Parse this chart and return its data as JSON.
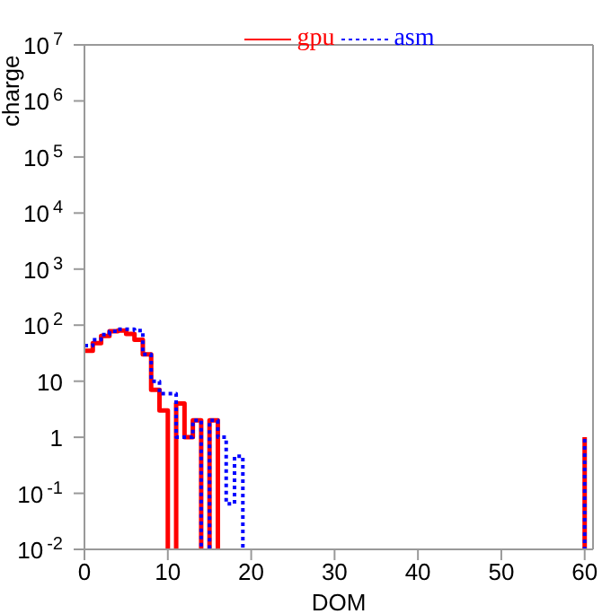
{
  "chart_data": {
    "type": "step",
    "xlabel": "DOM",
    "ylabel": "charge",
    "log": "y",
    "legend": "top",
    "grid": false,
    "x": [
      0,
      1,
      2,
      3,
      4,
      5,
      6,
      7,
      8,
      9,
      10,
      11,
      12,
      13,
      14,
      15,
      16,
      17,
      18,
      19,
      20,
      21,
      22,
      23,
      24,
      25,
      26,
      27,
      28,
      29,
      30,
      31,
      32,
      33,
      34,
      35,
      36,
      37,
      38,
      39,
      40,
      41,
      42,
      43,
      44,
      45,
      46,
      47,
      48,
      49,
      50,
      51,
      52,
      53,
      54,
      55,
      56,
      57,
      58,
      59,
      60
    ],
    "xlim": [
      0,
      61
    ],
    "xticks": [
      0,
      10,
      20,
      30,
      40,
      50,
      60
    ],
    "ylim": [
      0.01,
      10000000
    ],
    "yticks": [
      {
        "value": 0.01,
        "label": "10$^{-2}$"
      },
      {
        "value": 0.1,
        "label": "10$^{-1}$"
      },
      {
        "value": 1,
        "label": "1"
      },
      {
        "value": 10,
        "label": "10"
      },
      {
        "value": 100,
        "label": "10$^{2}$"
      },
      {
        "value": 1000,
        "label": "10$^{3}$"
      },
      {
        "value": 10000,
        "label": "10$^{4}$"
      },
      {
        "value": 100000,
        "label": "10$^{5}$"
      },
      {
        "value": 1000000,
        "label": "10$^{6}$"
      },
      {
        "value": 10000000,
        "label": "10$^{7}$"
      }
    ],
    "series": [
      {
        "name": "gpu",
        "color": "#ff0000",
        "line_style": "solid",
        "values": [
          35,
          48,
          64,
          78,
          80,
          70,
          55,
          30,
          7,
          3,
          null,
          4,
          1,
          2,
          null,
          2,
          null,
          null,
          null,
          null,
          null,
          null,
          null,
          null,
          null,
          null,
          null,
          null,
          null,
          null,
          null,
          null,
          null,
          null,
          null,
          null,
          null,
          null,
          null,
          null,
          null,
          null,
          null,
          null,
          null,
          null,
          null,
          null,
          null,
          null,
          null,
          null,
          null,
          null,
          null,
          null,
          null,
          null,
          null,
          null,
          1
        ]
      },
      {
        "name": "asm",
        "color": "#0000ff",
        "line_style": "dotted",
        "values": [
          43,
          55,
          68,
          78,
          85,
          85,
          80,
          30,
          10,
          6,
          6,
          1,
          1,
          2,
          null,
          2,
          1,
          0.065,
          0.46,
          null,
          null,
          null,
          null,
          null,
          null,
          null,
          null,
          null,
          null,
          null,
          null,
          null,
          null,
          null,
          null,
          null,
          null,
          null,
          null,
          null,
          null,
          null,
          null,
          null,
          null,
          null,
          null,
          null,
          null,
          null,
          null,
          null,
          null,
          null,
          null,
          null,
          null,
          null,
          null,
          null,
          1
        ]
      }
    ]
  }
}
